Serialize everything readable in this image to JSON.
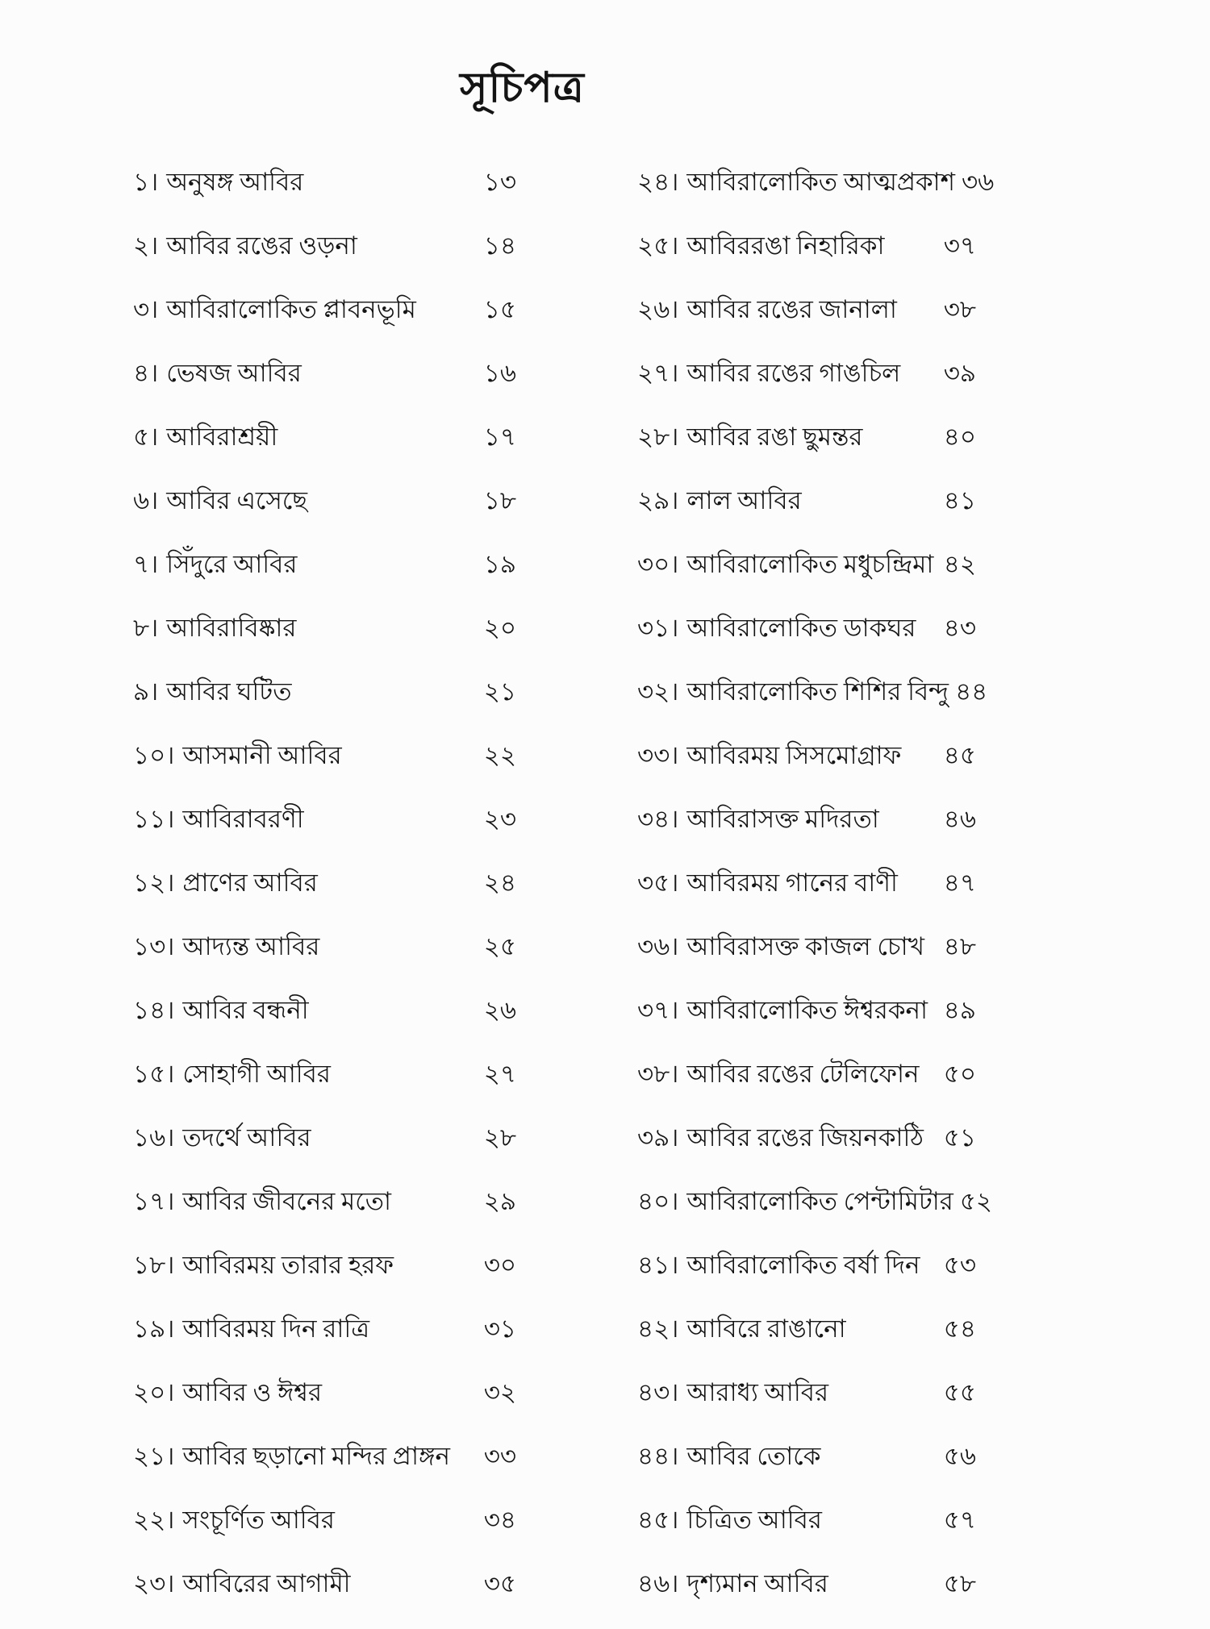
{
  "toc": {
    "title": "সূচিপত্র",
    "separator": "।",
    "columns": {
      "left": [
        {
          "no": "১",
          "title": "অনুষঙ্গ আবির",
          "page": "১৩"
        },
        {
          "no": "২",
          "title": "আবির রঙের ওড়না",
          "page": "১৪"
        },
        {
          "no": "৩",
          "title": "আবিরালোকিত প্লাবনভূমি",
          "page": "১৫"
        },
        {
          "no": "৪",
          "title": "ভেষজ আবির",
          "page": "১৬"
        },
        {
          "no": "৫",
          "title": "আবিরাশ্রয়ী",
          "page": "১৭"
        },
        {
          "no": "৬",
          "title": "আবির এসেছে",
          "page": "১৮"
        },
        {
          "no": "৭",
          "title": "সিঁদুরে আবির",
          "page": "১৯"
        },
        {
          "no": "৮",
          "title": "আবিরাবিষ্কার",
          "page": "২০"
        },
        {
          "no": "৯",
          "title": "আবির ঘটিত",
          "page": "২১"
        },
        {
          "no": "১০",
          "title": "আসমানী আবির",
          "page": "২২"
        },
        {
          "no": "১১",
          "title": "আবিরাবরণী",
          "page": "২৩"
        },
        {
          "no": "১২",
          "title": "প্রাণের আবির",
          "page": "২৪"
        },
        {
          "no": "১৩",
          "title": "আদ্যন্ত আবির",
          "page": "২৫"
        },
        {
          "no": "১৪",
          "title": "আবির বন্ধনী",
          "page": "২৬"
        },
        {
          "no": "১৫",
          "title": "সোহাগী আবির",
          "page": "২৭"
        },
        {
          "no": "১৬",
          "title": "তদর্থে আবির",
          "page": "২৮"
        },
        {
          "no": "১৭",
          "title": "আবির জীবনের মতো",
          "page": "২৯"
        },
        {
          "no": "১৮",
          "title": "আবিরময় তারার হরফ",
          "page": "৩০"
        },
        {
          "no": "১৯",
          "title": "আবিরময় দিন রাত্রি",
          "page": "৩১"
        },
        {
          "no": "২০",
          "title": "আবির ও ঈশ্বর",
          "page": "৩২"
        },
        {
          "no": "২১",
          "title": "আবির ছড়ানো মন্দির প্রাঙ্গন",
          "page": "৩৩"
        },
        {
          "no": "২২",
          "title": "সংচূর্ণিত আবির",
          "page": "৩৪"
        },
        {
          "no": "২৩",
          "title": "আবিরের আগামী",
          "page": "৩৫"
        }
      ],
      "right": [
        {
          "no": "২৪",
          "title": "আবিরালোকিত আত্মপ্রকাশ",
          "page": "৩৬"
        },
        {
          "no": "২৫",
          "title": "আবিররঙা নিহারিকা",
          "page": "৩৭"
        },
        {
          "no": "২৬",
          "title": "আবির রঙের জানালা",
          "page": "৩৮"
        },
        {
          "no": "২৭",
          "title": "আবির রঙের গাঙচিল",
          "page": "৩৯"
        },
        {
          "no": "২৮",
          "title": "আবির রঙা ছুমন্তর",
          "page": "৪০"
        },
        {
          "no": "২৯",
          "title": "লাল আবির",
          "page": "৪১"
        },
        {
          "no": "৩০",
          "title": "আবিরালোকিত মধুচন্দ্রিমা",
          "page": "৪২"
        },
        {
          "no": "৩১",
          "title": "আবিরালোকিত ডাকঘর",
          "page": "৪৩"
        },
        {
          "no": "৩২",
          "title": "আবিরালোকিত শিশির বিন্দু",
          "page": "৪৪"
        },
        {
          "no": "৩৩",
          "title": "আবিরময় সিসমোগ্রাফ",
          "page": "৪৫"
        },
        {
          "no": "৩৪",
          "title": "আবিরাসক্ত মদিরতা",
          "page": "৪৬"
        },
        {
          "no": "৩৫",
          "title": "আবিরময় গানের বাণী",
          "page": "৪৭"
        },
        {
          "no": "৩৬",
          "title": "আবিরাসক্ত কাজল চোখ",
          "page": "৪৮"
        },
        {
          "no": "৩৭",
          "title": "আবিরালোকিত ঈশ্বরকনা",
          "page": "৪৯"
        },
        {
          "no": "৩৮",
          "title": "আবির রঙের টেলিফোন",
          "page": "৫০"
        },
        {
          "no": "৩৯",
          "title": "আবির রঙের জিয়নকাঠি",
          "page": "৫১"
        },
        {
          "no": "৪০",
          "title": "আবিরালোকিত পেন্টামিটার",
          "page": "৫২"
        },
        {
          "no": "৪১",
          "title": "আবিরালোকিত বর্ষা দিন",
          "page": "৫৩"
        },
        {
          "no": "৪২",
          "title": "আবিরে রাঙানো",
          "page": "৫৪"
        },
        {
          "no": "৪৩",
          "title": "আরাধ্য আবির",
          "page": "৫৫"
        },
        {
          "no": "৪৪",
          "title": "আবির তোকে",
          "page": "৫৬"
        },
        {
          "no": "৪৫",
          "title": "চিত্রিত আবির",
          "page": "৫৭"
        },
        {
          "no": "৪৬",
          "title": "দৃশ্যমান আবির",
          "page": "৫৮"
        }
      ]
    }
  }
}
